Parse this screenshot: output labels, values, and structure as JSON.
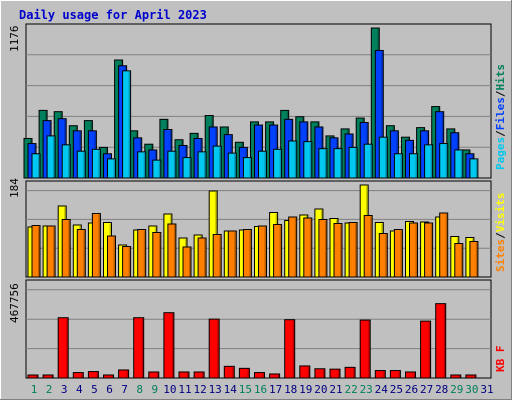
{
  "title": "Daily usage for April 2023",
  "colors": {
    "background": "#c0c0c0",
    "title": "#0000cc",
    "hits": "#00805c",
    "files": "#0040ff",
    "pages": "#00c8f0",
    "visits": "#ffff00",
    "sites": "#ff8000",
    "kbytes": "#ff0000",
    "weekday_label": "#000080",
    "weekend_label": "#00805c",
    "gridline": "#808080"
  },
  "chart_data": [
    {
      "type": "bar",
      "panel": "hits-files-pages",
      "ymax_label": "1176",
      "ylim": [
        0,
        1176
      ],
      "legend_parts": [
        "Pages",
        "Files",
        "Hits"
      ],
      "categories": [
        "1",
        "2",
        "3",
        "4",
        "5",
        "6",
        "7",
        "8",
        "9",
        "10",
        "11",
        "12",
        "13",
        "14",
        "15",
        "16",
        "17",
        "18",
        "19",
        "20",
        "21",
        "22",
        "23",
        "24",
        "25",
        "26",
        "27",
        "28",
        "29",
        "30",
        "31"
      ],
      "series": [
        {
          "name": "Hits",
          "values": [
            310,
            530,
            520,
            410,
            450,
            240,
            925,
            370,
            265,
            460,
            300,
            350,
            490,
            400,
            280,
            440,
            440,
            530,
            480,
            440,
            330,
            385,
            470,
            1176,
            410,
            320,
            395,
            560,
            385,
            220,
            0
          ]
        },
        {
          "name": "Files",
          "values": [
            270,
            450,
            465,
            370,
            370,
            190,
            880,
            315,
            220,
            380,
            255,
            310,
            400,
            340,
            240,
            415,
            415,
            460,
            440,
            400,
            315,
            345,
            435,
            1000,
            370,
            295,
            370,
            520,
            355,
            190,
            0
          ]
        },
        {
          "name": "Pages",
          "values": [
            190,
            330,
            260,
            210,
            225,
            150,
            840,
            205,
            140,
            210,
            160,
            205,
            250,
            195,
            160,
            210,
            225,
            290,
            285,
            230,
            230,
            240,
            265,
            320,
            190,
            190,
            260,
            270,
            220,
            150,
            0
          ]
        }
      ]
    },
    {
      "type": "bar",
      "panel": "visits-sites",
      "ymax_label": "184",
      "ylim": [
        0,
        184
      ],
      "legend_parts": [
        "Sites",
        "Visits"
      ],
      "categories": [
        "1",
        "2",
        "3",
        "4",
        "5",
        "6",
        "7",
        "8",
        "9",
        "10",
        "11",
        "12",
        "13",
        "14",
        "15",
        "16",
        "17",
        "18",
        "19",
        "20",
        "21",
        "22",
        "23",
        "24",
        "25",
        "26",
        "27",
        "28",
        "29",
        "30",
        "31"
      ],
      "series": [
        {
          "name": "Visits",
          "values": [
            100,
            102,
            142,
            104,
            108,
            109,
            64,
            94,
            102,
            126,
            78,
            84,
            172,
            92,
            94,
            101,
            129,
            113,
            124,
            136,
            117,
            108,
            184,
            109,
            92,
            111,
            110,
            120,
            81,
            79,
            0
          ]
        },
        {
          "name": "Sites",
          "values": [
            103,
            102,
            115,
            95,
            127,
            82,
            61,
            95,
            89,
            106,
            60,
            78,
            85,
            92,
            95,
            102,
            105,
            120,
            118,
            115,
            107,
            109,
            123,
            87,
            95,
            108,
            108,
            128,
            67,
            71,
            0
          ]
        }
      ]
    },
    {
      "type": "bar",
      "panel": "kbytes",
      "ymax_label": "467756",
      "ylim": [
        0,
        467756
      ],
      "legend_parts": [
        "KB F"
      ],
      "categories": [
        "1",
        "2",
        "3",
        "4",
        "5",
        "6",
        "7",
        "8",
        "9",
        "10",
        "11",
        "12",
        "13",
        "14",
        "15",
        "16",
        "17",
        "18",
        "19",
        "20",
        "21",
        "22",
        "23",
        "24",
        "25",
        "26",
        "27",
        "28",
        "29",
        "30",
        "31"
      ],
      "weekend_days": [
        1,
        2,
        8,
        9,
        15,
        16,
        22,
        23,
        29,
        30
      ],
      "series": [
        {
          "name": "KB F",
          "values": [
            15000,
            15000,
            300000,
            27000,
            32000,
            15000,
            40000,
            300000,
            30000,
            325000,
            30000,
            30000,
            293000,
            58000,
            48000,
            27000,
            20000,
            290000,
            60000,
            46000,
            44000,
            53000,
            288000,
            37000,
            37000,
            30000,
            283000,
            370000,
            15000,
            15000,
            0
          ]
        }
      ]
    }
  ]
}
